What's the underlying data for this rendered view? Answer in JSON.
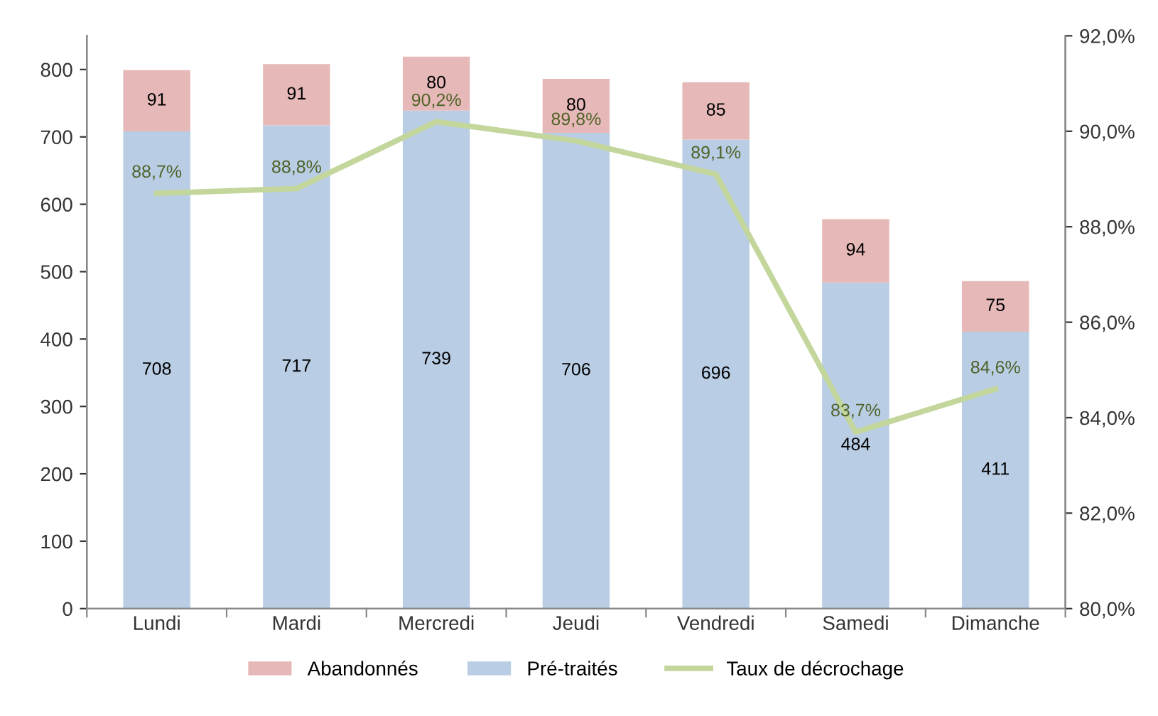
{
  "chart_data": {
    "type": "bar",
    "stacked": true,
    "categories": [
      "Lundi",
      "Mardi",
      "Mercredi",
      "Jeudi",
      "Vendredi",
      "Samedi",
      "Dimanche"
    ],
    "series": [
      {
        "name": "Pré-traités",
        "color": "#b9cde5",
        "values": [
          708,
          717,
          739,
          706,
          696,
          484,
          411
        ]
      },
      {
        "name": "Abandonnés",
        "color": "#e6b9b8",
        "values": [
          91,
          91,
          80,
          80,
          85,
          94,
          75
        ]
      },
      {
        "name": "Taux de décrochage",
        "type": "line",
        "axis": "y2",
        "color": "#c3d69b",
        "values": [
          88.7,
          88.8,
          90.2,
          89.8,
          89.1,
          83.7,
          84.6
        ],
        "value_labels": [
          "88,7%",
          "88,8%",
          "90,2%",
          "89,8%",
          "89,1%",
          "83,7%",
          "84,6%"
        ]
      }
    ],
    "data_labels": true,
    "ylim": [
      0,
      850
    ],
    "yticks": [
      0,
      100,
      200,
      300,
      400,
      500,
      600,
      700,
      800
    ],
    "y2lim": [
      80,
      92
    ],
    "y2ticks": [
      {
        "value": 80,
        "label": "80,0%"
      },
      {
        "value": 82,
        "label": "82,0%"
      },
      {
        "value": 84,
        "label": "84,0%"
      },
      {
        "value": 86,
        "label": "86,0%"
      },
      {
        "value": 88,
        "label": "88,0%"
      },
      {
        "value": 90,
        "label": "90,0%"
      },
      {
        "value": 92,
        "label": "92,0%"
      }
    ],
    "grid": false,
    "legend": "bottom",
    "marker": "none"
  }
}
